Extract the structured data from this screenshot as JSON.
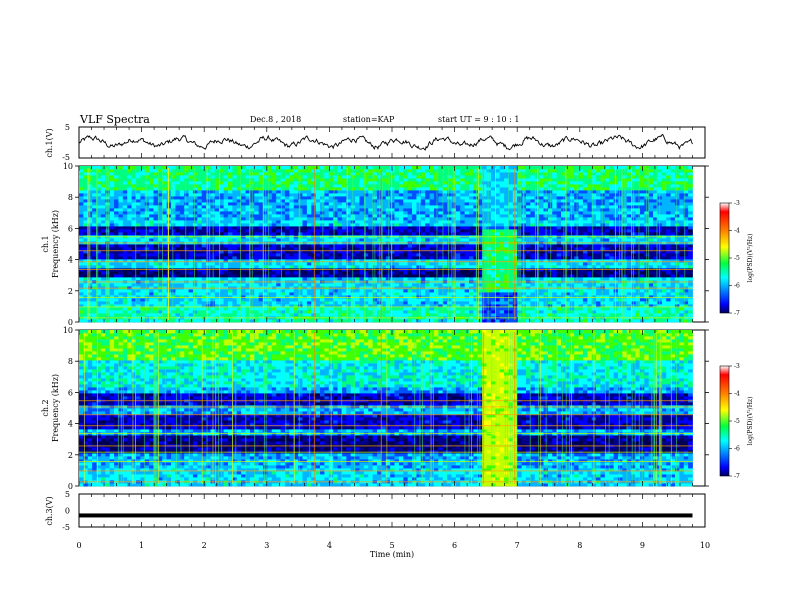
{
  "header": {
    "title": "VLF Spectra",
    "date": "Dec.8 , 2018",
    "station": "station=KAP",
    "start": "start UT =  9 : 10 : 1"
  },
  "colorbar": {
    "label": "log(PSD)(V²/Hz)",
    "ticks": [
      "-3",
      "-4",
      "-5",
      "-6",
      "-7"
    ],
    "colors": [
      "#000000",
      "#ff0000",
      "#ff8000",
      "#ffff00",
      "#00ff40",
      "#00ffff",
      "#0080ff",
      "#0000ff",
      "#000080"
    ]
  },
  "chart_data": [
    {
      "type": "line",
      "panel": "ch1-waveform",
      "ylabel": "ch.1(V)",
      "yticks": [
        "5",
        "-5"
      ],
      "ylim": [
        -5,
        5
      ],
      "xlim": [
        0,
        10
      ],
      "description_values": "noisy waveform oscillating roughly between -2 and 2 V over the full 0-9.8 min span"
    },
    {
      "type": "heatmap",
      "panel": "ch1-spectrogram",
      "ylabel": "ch.1 Frequency (kHz)",
      "yticks": [
        "10",
        "8",
        "6",
        "4",
        "2",
        "0"
      ],
      "ylim": [
        0,
        10
      ],
      "xlim": [
        0,
        10
      ],
      "zlim": [
        -7,
        -3
      ]
    },
    {
      "type": "heatmap",
      "panel": "ch2-spectrogram",
      "ylabel": "ch.2 Frequency (kHz)",
      "yticks": [
        "10",
        "8",
        "6",
        "4",
        "2",
        "0"
      ],
      "ylim": [
        0,
        10
      ],
      "xlim": [
        0,
        10
      ],
      "zlim": [
        -7,
        -3
      ]
    },
    {
      "type": "line",
      "panel": "ch3-waveform",
      "ylabel": "ch.3(V)",
      "yticks": [
        "5",
        "0",
        "-5"
      ],
      "ylim": [
        -5,
        5
      ],
      "xlim": [
        0,
        10
      ],
      "x": [
        0,
        9.8
      ],
      "y": [
        -1.5,
        -1.5
      ],
      "xlabel": "Time (min)",
      "xticks": [
        "0",
        "1",
        "2",
        "3",
        "4",
        "5",
        "6",
        "7",
        "8",
        "9",
        "10"
      ]
    }
  ]
}
